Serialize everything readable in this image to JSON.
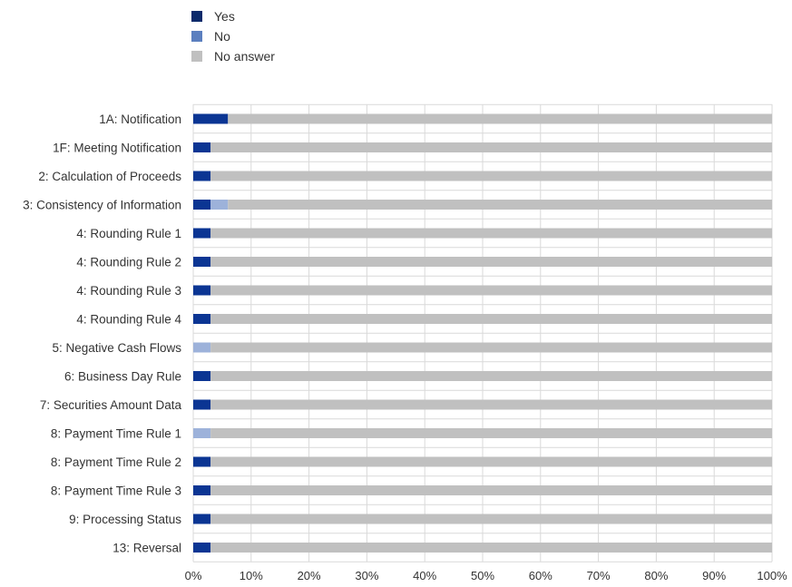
{
  "chart_data": {
    "type": "bar",
    "orientation": "horizontal",
    "stacked": true,
    "title": "",
    "xlabel": "",
    "ylabel": "",
    "xlim": [
      0,
      100
    ],
    "x_ticks": [
      "0%",
      "10%",
      "20%",
      "30%",
      "40%",
      "50%",
      "60%",
      "70%",
      "80%",
      "90%",
      "100%"
    ],
    "grid": true,
    "legend_position": "top-left",
    "categories": [
      "1A: Notification",
      "1F: Meeting Notification",
      "2: Calculation of Proceeds",
      "3: Consistency of Information",
      "4: Rounding Rule 1",
      "4: Rounding Rule 2",
      "4: Rounding Rule 3",
      "4: Rounding Rule 4",
      "5: Negative Cash Flows",
      "6: Business Day Rule",
      "7: Securities Amount Data",
      "8: Payment Time Rule 1",
      "8: Payment Time Rule 2",
      "8: Payment Time Rule 3",
      "9: Processing Status",
      "13: Reversal"
    ],
    "series": [
      {
        "name": "Yes",
        "color": "#0b3593",
        "values": [
          6,
          3,
          3,
          3,
          3,
          3,
          3,
          3,
          0,
          3,
          3,
          0,
          3,
          3,
          3,
          3
        ]
      },
      {
        "name": "No",
        "color": "#9db2da",
        "values": [
          0,
          0,
          0,
          3,
          0,
          0,
          0,
          0,
          3,
          0,
          0,
          3,
          0,
          0,
          0,
          0
        ]
      },
      {
        "name": "No answer",
        "color": "#c0c0c0",
        "values": [
          94,
          97,
          97,
          94,
          97,
          97,
          97,
          97,
          97,
          97,
          97,
          97,
          97,
          97,
          97,
          97
        ]
      }
    ]
  },
  "legend": {
    "items": [
      {
        "label": "Yes",
        "color": "#0b2a6b"
      },
      {
        "label": "No",
        "color": "#5b7fbf"
      },
      {
        "label": "No answer",
        "color": "#c0c0c0"
      }
    ]
  }
}
